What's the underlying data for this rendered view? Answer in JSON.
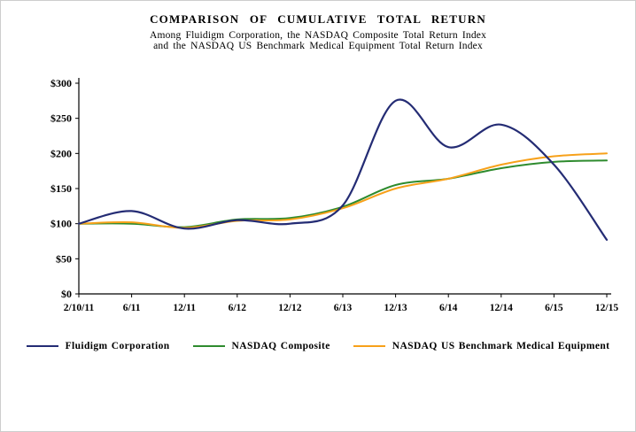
{
  "page": {
    "background": "#ffffff",
    "border_color": "#cdcdcd",
    "text_color": "#000000"
  },
  "chart_data": {
    "type": "line",
    "title": "COMPARISON OF CUMULATIVE TOTAL RETURN",
    "subtitle_lines": [
      "Among Fluidigm Corporation, the NASDAQ Composite Total Return Index",
      "and the NASDAQ US Benchmark Medical Equipment Total Return Index"
    ],
    "categories": [
      "2/10/11",
      "6/11",
      "12/11",
      "6/12",
      "12/12",
      "6/13",
      "12/13",
      "6/14",
      "12/14",
      "6/15",
      "12/15"
    ],
    "y_ticks": [
      "$0",
      "$50",
      "$100",
      "$150",
      "$200",
      "$250",
      "$300"
    ],
    "y_tick_values": [
      0,
      50,
      100,
      150,
      200,
      250,
      300
    ],
    "ylim": [
      0,
      300
    ],
    "grid": false,
    "legend_position": "bottom",
    "axis_color": "#000000",
    "series": [
      {
        "name": "Fluidigm Corporation",
        "color": "#242c74",
        "values": [
          100,
          118,
          93,
          105,
          100,
          126,
          275,
          209,
          241,
          184,
          77
        ]
      },
      {
        "name": "NASDAQ Composite",
        "color": "#2e8b2e",
        "values": [
          100,
          100,
          95,
          106,
          108,
          124,
          155,
          164,
          179,
          188,
          190
        ]
      },
      {
        "name": "NASDAQ US Benchmark Medical Equipment",
        "color": "#f7a11a",
        "values": [
          100,
          102,
          94,
          104,
          106,
          122,
          150,
          164,
          184,
          196,
          200
        ]
      }
    ]
  }
}
